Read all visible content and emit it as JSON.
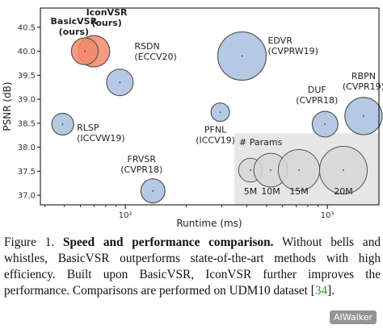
{
  "chart_data": {
    "type": "scatter",
    "xlabel": "Runtime (ms)",
    "ylabel": "PSNR (dB)",
    "xscale": "log",
    "xlim": [
      38,
      1800
    ],
    "ylim": [
      36.8,
      40.9
    ],
    "xticks": [
      {
        "value": 100,
        "label": "10²"
      },
      {
        "value": 1000,
        "label": "10³"
      }
    ],
    "yticks": [
      37.0,
      37.5,
      38.0,
      38.5,
      39.0,
      39.5,
      40.0,
      40.5
    ],
    "points": [
      {
        "name": "BasicVSR\n(ours)",
        "label_lines": [
          "BasicVSR",
          "(ours)"
        ],
        "x": 63,
        "y": 40.0,
        "params_m": 6.3,
        "color": "#f4896b",
        "highlight": true
      },
      {
        "name": "IconVSR\n(ours)",
        "label_lines": [
          "IconVSR",
          "(ours)"
        ],
        "x": 70,
        "y": 40.0,
        "params_m": 8.7,
        "color": "#f4896b",
        "highlight": true
      },
      {
        "name": "EDVR\n(CVPRW19)",
        "label_lines": [
          "EDVR",
          "(CVPRW19)"
        ],
        "x": 378,
        "y": 39.9,
        "params_m": 20.6,
        "color": "#a9c0df",
        "highlight": false
      },
      {
        "name": "RSDN\n(ECCV20)",
        "label_lines": [
          "RSDN",
          "(ECCV20)"
        ],
        "x": 94,
        "y": 39.35,
        "params_m": 6.2,
        "color": "#a9c0df",
        "highlight": false
      },
      {
        "name": "RBPN\n(CVPR19)",
        "label_lines": [
          "RBPN",
          "(CVPR19)"
        ],
        "x": 1510,
        "y": 38.65,
        "params_m": 12.2,
        "color": "#a9c0df",
        "highlight": false
      },
      {
        "name": "PFNL\n(ICCV19)",
        "label_lines": [
          "PFNL",
          "(ICCV19)"
        ],
        "x": 295,
        "y": 38.73,
        "params_m": 3.0,
        "color": "#a9c0df",
        "highlight": false
      },
      {
        "name": "DUF\n(CVPR18)",
        "label_lines": [
          "DUF",
          "(CVPR18)"
        ],
        "x": 974,
        "y": 38.48,
        "params_m": 5.8,
        "color": "#a9c0df",
        "highlight": false
      },
      {
        "name": "RLSP\n(ICCVW19)",
        "label_lines": [
          "RLSP",
          "(ICCVW19)"
        ],
        "x": 49,
        "y": 38.48,
        "params_m": 4.2,
        "color": "#a9c0df",
        "highlight": false
      },
      {
        "name": "FRVSR\n(CVPR18)",
        "label_lines": [
          "FRVSR",
          "(CVPR18)"
        ],
        "x": 137,
        "y": 37.09,
        "params_m": 5.1,
        "color": "#a9c0df",
        "highlight": false
      }
    ],
    "legend": {
      "title": "# Params",
      "placement": "bottom-right",
      "entries": [
        {
          "label": "5M",
          "params_m": 5
        },
        {
          "label": "10M",
          "params_m": 10
        },
        {
          "label": "15M",
          "params_m": 15
        },
        {
          "label": "20M",
          "params_m": 20
        }
      ]
    },
    "grid": false
  },
  "caption": {
    "figure_label": "Figure 1.",
    "title": "Speed and performance comparison.",
    "body": "Without bells and whistles, BasicVSR outperforms state-of-the-art methods with high efficiency.  Built upon BasicVSR, IconVSR further improves the performance. Comparisons are performed on UDM10 dataset [",
    "citation": "34",
    "end": "]."
  },
  "watermark": "AIWalker",
  "colors": {
    "ours": "#f4896b",
    "others": "#a9c0df",
    "legend_bubble": "#d6d6d6",
    "legend_bg": "#e6e6e6",
    "citation": "#2e8b3a"
  }
}
